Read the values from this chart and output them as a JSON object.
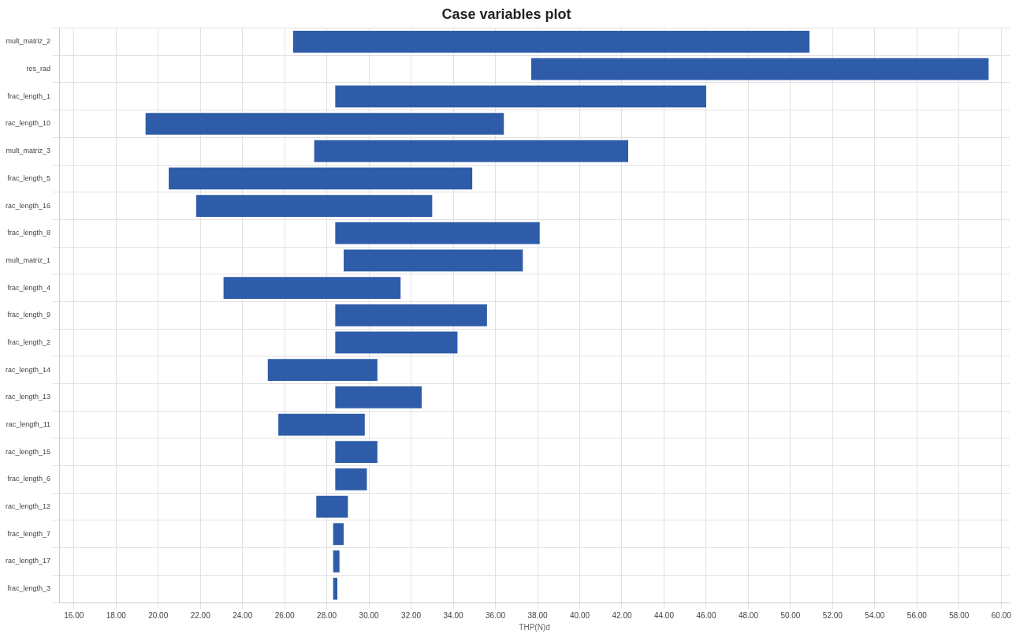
{
  "chart_data": {
    "type": "bar",
    "title": "Case variables plot",
    "xlabel": "THP(N)d",
    "orientation": "horizontal",
    "categories": [
      "mult_matriz_2",
      "res_rad",
      "frac_length_1",
      "rac_length_10",
      "mult_matriz_3",
      "frac_length_5",
      "rac_length_16",
      "frac_length_8",
      "mult_matriz_1",
      "frac_length_4",
      "frac_length_9",
      "frac_length_2",
      "rac_length_14",
      "rac_length_13",
      "rac_length_11",
      "rac_length_15",
      "frac_length_6",
      "rac_length_12",
      "frac_length_7",
      "rac_length_17",
      "frac_length_3"
    ],
    "base": [
      26.4,
      37.7,
      28.4,
      19.4,
      27.4,
      20.5,
      21.8,
      28.4,
      28.8,
      23.1,
      28.4,
      28.4,
      25.2,
      28.4,
      25.7,
      28.4,
      28.4,
      27.5,
      28.3,
      28.3,
      28.3
    ],
    "values": [
      24.5,
      21.7,
      17.6,
      17.0,
      14.9,
      14.4,
      11.2,
      9.7,
      8.5,
      8.4,
      7.2,
      5.8,
      5.2,
      4.1,
      4.1,
      2.0,
      1.5,
      1.5,
      0.5,
      0.3,
      0.2
    ],
    "color": "#2e5ca8",
    "xlim": [
      15.3,
      60.4
    ],
    "xticks": [
      {
        "value": 16,
        "label": "16.00"
      },
      {
        "value": 18,
        "label": "18.00"
      },
      {
        "value": 20,
        "label": "20.00"
      },
      {
        "value": 22,
        "label": "22.00"
      },
      {
        "value": 24,
        "label": "24.00"
      },
      {
        "value": 26,
        "label": "26.00"
      },
      {
        "value": 28,
        "label": "28.00"
      },
      {
        "value": 30,
        "label": "30.00"
      },
      {
        "value": 32,
        "label": "32.00"
      },
      {
        "value": 34,
        "label": "34.00"
      },
      {
        "value": 36,
        "label": "36.00"
      },
      {
        "value": 38,
        "label": "38.00"
      },
      {
        "value": 40,
        "label": "40.00"
      },
      {
        "value": 42,
        "label": "42.00"
      },
      {
        "value": 44,
        "label": "44.00"
      },
      {
        "value": 46,
        "label": "46.00"
      },
      {
        "value": 48,
        "label": "48.00"
      },
      {
        "value": 50,
        "label": "50.00"
      },
      {
        "value": 52,
        "label": "52.00"
      },
      {
        "value": 54,
        "label": "54.00"
      },
      {
        "value": 56,
        "label": "56.00"
      },
      {
        "value": 58,
        "label": "58.00"
      },
      {
        "value": 60,
        "label": "60.00"
      }
    ],
    "grid": true
  }
}
